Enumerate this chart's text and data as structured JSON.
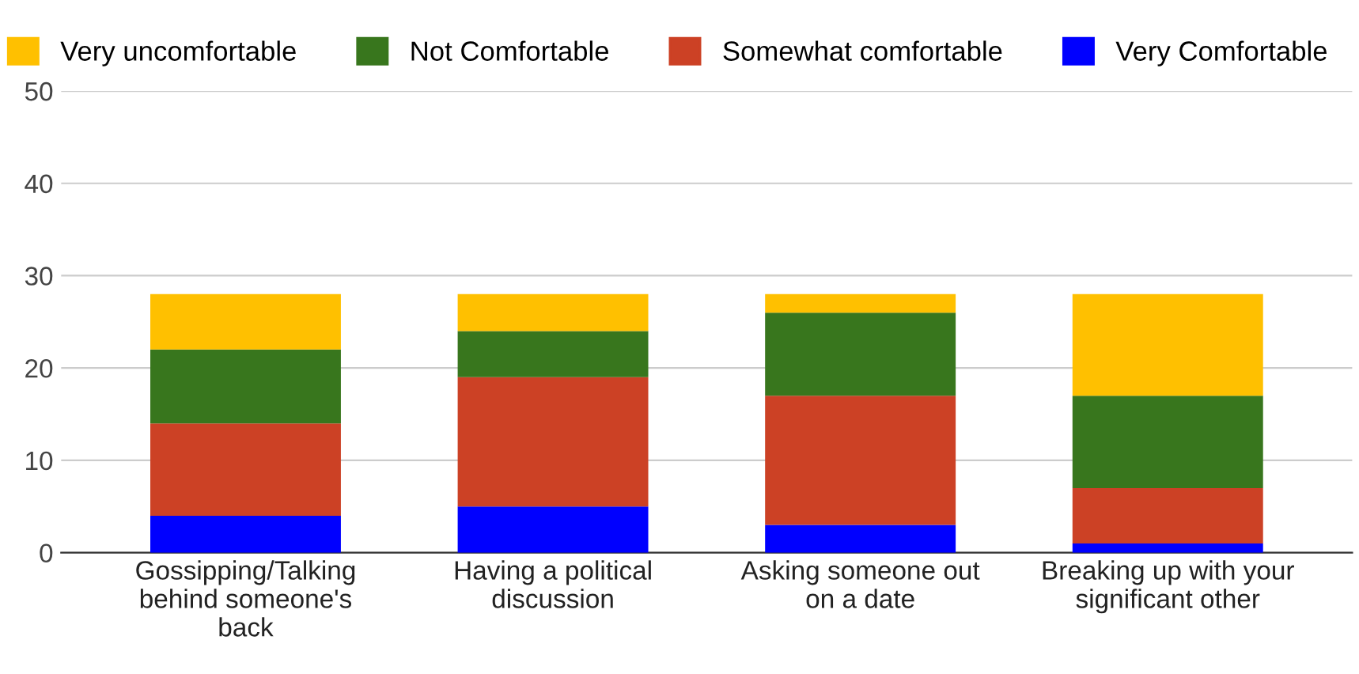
{
  "chart_data": {
    "type": "bar",
    "stacked": true,
    "categories": [
      "Gossipping/Talking\nbehind someone's\nback",
      "Having a political\ndiscussion",
      "Asking someone out\non a date",
      "Breaking up with your\nsignificant other"
    ],
    "series": [
      {
        "name": "Very Comfortable",
        "color": "#0000ff",
        "values": [
          4,
          5,
          3,
          1
        ]
      },
      {
        "name": "Somewhat comfortable",
        "color": "#cc4125",
        "values": [
          10,
          14,
          14,
          6
        ]
      },
      {
        "name": "Not Comfortable",
        "color": "#38761d",
        "values": [
          8,
          5,
          9,
          10
        ]
      },
      {
        "name": "Very uncomfortable",
        "color": "#ffc000",
        "values": [
          6,
          4,
          2,
          11
        ]
      }
    ],
    "ylim": [
      0,
      50
    ],
    "yticks": [
      0,
      10,
      20,
      30,
      40,
      50
    ],
    "grid": "y",
    "legend": "top"
  }
}
